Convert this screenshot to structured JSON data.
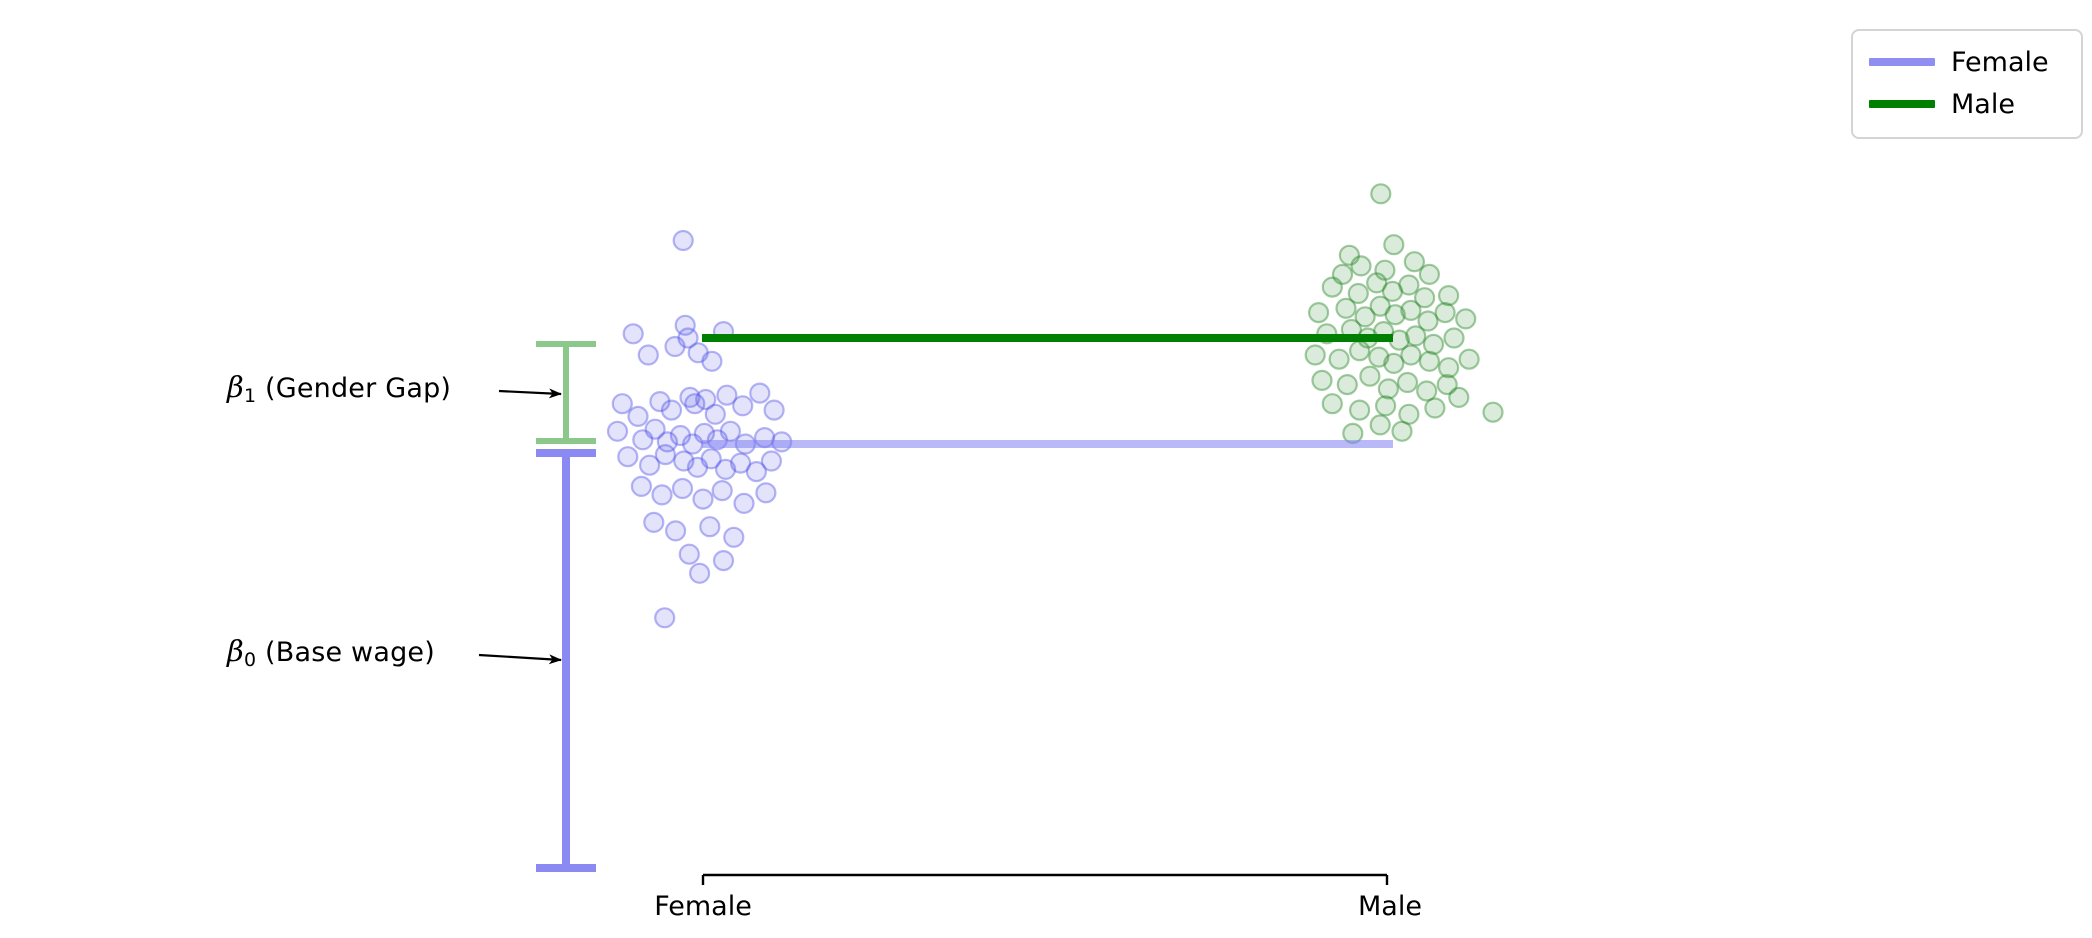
{
  "chart_data": {
    "type": "scatter",
    "title": "",
    "xlabel": "",
    "ylabel": "",
    "categories": [
      "Female",
      "Male"
    ],
    "ylim": [
      0,
      33
    ],
    "grid": false,
    "axis": {
      "only_bottom_spine": true,
      "tick_labels": [
        "Female",
        "Male"
      ]
    },
    "legend": {
      "position": "upper-right",
      "entries": [
        {
          "label": "Female",
          "color": "#8f8ff2"
        },
        {
          "label": "Male",
          "color": "#008000"
        }
      ]
    },
    "coefficients": {
      "beta1": {
        "symbol": "β",
        "sub": "1",
        "rest": " (Gender Gap)",
        "value": 5
      },
      "beta0": {
        "symbol": "β",
        "sub": "0",
        "rest": " (Base wage)",
        "value": 20
      }
    },
    "mean_lines": [
      {
        "name": "Female",
        "mean": 20,
        "color": "#8080f2",
        "alpha": 0.55
      },
      {
        "name": "Male",
        "mean": 25,
        "color": "#008000",
        "alpha": 1.0
      }
    ],
    "brackets": [
      {
        "name": "gender-gap",
        "from": 20,
        "to": 25,
        "color": "#8cc88c"
      },
      {
        "name": "base-wage",
        "from": 0,
        "to": 20,
        "color": "#8b89f2"
      }
    ],
    "series": [
      {
        "name": "Female",
        "color": "#5050e8",
        "mean": 20,
        "points": [
          [
            -0.029,
            29.6
          ],
          [
            -0.102,
            25.2
          ],
          [
            -0.026,
            25.6
          ],
          [
            -0.022,
            25.0
          ],
          [
            -0.041,
            24.6
          ],
          [
            0.03,
            25.3
          ],
          [
            -0.08,
            24.2
          ],
          [
            -0.007,
            24.3
          ],
          [
            0.013,
            23.9
          ],
          [
            -0.019,
            22.2
          ],
          [
            0.018,
            21.4
          ],
          [
            -0.118,
            21.9
          ],
          [
            -0.095,
            21.3
          ],
          [
            -0.063,
            22.0
          ],
          [
            -0.046,
            21.6
          ],
          [
            -0.012,
            21.9
          ],
          [
            0.004,
            22.1
          ],
          [
            0.035,
            22.3
          ],
          [
            0.058,
            21.8
          ],
          [
            0.083,
            22.4
          ],
          [
            0.104,
            21.6
          ],
          [
            -0.125,
            20.6
          ],
          [
            -0.088,
            20.2
          ],
          [
            -0.07,
            20.7
          ],
          [
            -0.052,
            20.1
          ],
          [
            -0.033,
            20.4
          ],
          [
            -0.015,
            20.0
          ],
          [
            0.002,
            20.5
          ],
          [
            0.021,
            20.2
          ],
          [
            0.04,
            20.6
          ],
          [
            0.062,
            20.0
          ],
          [
            0.09,
            20.3
          ],
          [
            0.115,
            20.1
          ],
          [
            -0.11,
            19.4
          ],
          [
            -0.078,
            19.0
          ],
          [
            -0.055,
            19.5
          ],
          [
            -0.028,
            19.2
          ],
          [
            -0.008,
            18.9
          ],
          [
            0.012,
            19.3
          ],
          [
            0.033,
            18.8
          ],
          [
            0.055,
            19.1
          ],
          [
            0.078,
            18.7
          ],
          [
            0.1,
            19.2
          ],
          [
            -0.09,
            18.0
          ],
          [
            -0.06,
            17.6
          ],
          [
            -0.03,
            17.9
          ],
          [
            0.0,
            17.4
          ],
          [
            0.028,
            17.8
          ],
          [
            0.06,
            17.2
          ],
          [
            0.092,
            17.7
          ],
          [
            -0.072,
            16.3
          ],
          [
            -0.04,
            15.9
          ],
          [
            0.01,
            16.1
          ],
          [
            0.045,
            15.6
          ],
          [
            -0.02,
            14.8
          ],
          [
            0.03,
            14.5
          ],
          [
            -0.005,
            13.9
          ],
          [
            -0.056,
            11.8
          ]
        ]
      },
      {
        "name": "Male",
        "color": "#1e821e",
        "mean": 25,
        "points": [
          [
            0.991,
            31.8
          ],
          [
            0.945,
            28.9
          ],
          [
            1.01,
            29.4
          ],
          [
            0.962,
            28.4
          ],
          [
            1.04,
            28.6
          ],
          [
            0.997,
            28.2
          ],
          [
            1.062,
            28.0
          ],
          [
            0.92,
            27.4
          ],
          [
            0.958,
            27.1
          ],
          [
            0.985,
            27.6
          ],
          [
            1.008,
            27.2
          ],
          [
            1.032,
            27.5
          ],
          [
            1.055,
            26.9
          ],
          [
            1.09,
            27.0
          ],
          [
            0.9,
            26.2
          ],
          [
            0.94,
            26.4
          ],
          [
            0.968,
            26.0
          ],
          [
            0.99,
            26.5
          ],
          [
            1.012,
            26.1
          ],
          [
            1.035,
            26.3
          ],
          [
            1.06,
            25.8
          ],
          [
            1.085,
            26.2
          ],
          [
            1.115,
            25.9
          ],
          [
            0.912,
            25.2
          ],
          [
            0.948,
            25.4
          ],
          [
            0.972,
            25.0
          ],
          [
            0.995,
            25.3
          ],
          [
            1.018,
            24.9
          ],
          [
            1.042,
            25.1
          ],
          [
            1.068,
            24.7
          ],
          [
            1.098,
            25.0
          ],
          [
            0.895,
            24.2
          ],
          [
            0.93,
            24.0
          ],
          [
            0.96,
            24.4
          ],
          [
            0.988,
            24.1
          ],
          [
            1.01,
            23.8
          ],
          [
            1.035,
            24.2
          ],
          [
            1.062,
            23.9
          ],
          [
            1.09,
            23.6
          ],
          [
            1.12,
            24.0
          ],
          [
            0.905,
            23.0
          ],
          [
            0.942,
            22.8
          ],
          [
            0.975,
            23.2
          ],
          [
            1.002,
            22.6
          ],
          [
            1.03,
            22.9
          ],
          [
            1.058,
            22.5
          ],
          [
            1.088,
            22.8
          ],
          [
            0.92,
            21.9
          ],
          [
            0.96,
            21.6
          ],
          [
            0.998,
            21.8
          ],
          [
            1.032,
            21.4
          ],
          [
            1.07,
            21.7
          ],
          [
            1.155,
            21.5
          ],
          [
            0.99,
            20.9
          ],
          [
            1.022,
            20.6
          ],
          [
            0.95,
            20.5
          ],
          [
            1.105,
            22.2
          ],
          [
            0.935,
            28.0
          ]
        ]
      }
    ]
  }
}
